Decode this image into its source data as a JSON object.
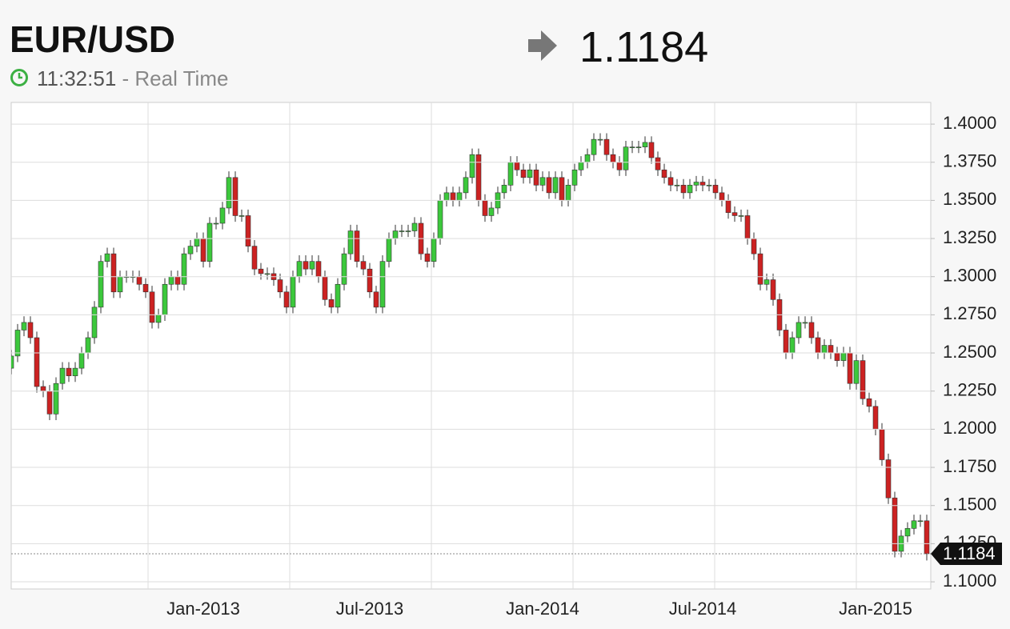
{
  "header": {
    "title": "EUR/USD",
    "time": "11:32:51",
    "status": "- Real Time",
    "price": 1.1184
  },
  "chart_data": {
    "type": "candlestick",
    "up_color": "#3cc83c",
    "down_color": "#cc2222",
    "grid": true,
    "ylim": [
      1.0953,
      1.4142
    ],
    "yticks": [
      {
        "value": 1.1,
        "label": "1.1000"
      },
      {
        "value": 1.125,
        "label": "1.1250"
      },
      {
        "value": 1.15,
        "label": "1.1500"
      },
      {
        "value": 1.175,
        "label": "1.1750"
      },
      {
        "value": 1.2,
        "label": "1.2000"
      },
      {
        "value": 1.225,
        "label": "1.2250"
      },
      {
        "value": 1.25,
        "label": "1.2500"
      },
      {
        "value": 1.275,
        "label": "1.2750"
      },
      {
        "value": 1.3,
        "label": "1.3000"
      },
      {
        "value": 1.325,
        "label": "1.3250"
      },
      {
        "value": 1.35,
        "label": "1.3500"
      },
      {
        "value": 1.375,
        "label": "1.3750"
      },
      {
        "value": 1.4,
        "label": "1.4000"
      }
    ],
    "categories": [
      null,
      null,
      null,
      null,
      null,
      null,
      null,
      null,
      null,
      null,
      null,
      null,
      null,
      null,
      null,
      null,
      null,
      null,
      null,
      null,
      null,
      null,
      null,
      null,
      null,
      null,
      null,
      null,
      null,
      null,
      "Jan-2013",
      null,
      null,
      null,
      null,
      null,
      null,
      null,
      null,
      null,
      null,
      null,
      null,
      null,
      null,
      null,
      null,
      null,
      null,
      null,
      null,
      null,
      null,
      null,
      null,
      null,
      "Jul-2013",
      null,
      null,
      null,
      null,
      null,
      null,
      null,
      null,
      null,
      null,
      null,
      null,
      null,
      null,
      null,
      null,
      null,
      null,
      null,
      null,
      null,
      null,
      null,
      null,
      null,
      null,
      "Jan-2014",
      null,
      null,
      null,
      null,
      null,
      null,
      null,
      null,
      null,
      null,
      null,
      null,
      null,
      null,
      null,
      null,
      null,
      null,
      null,
      null,
      null,
      null,
      null,
      null,
      "Jul-2014",
      null,
      null,
      null,
      null,
      null,
      null,
      null,
      null,
      null,
      null,
      null,
      null,
      null,
      null,
      null,
      null,
      null,
      null,
      null,
      null,
      null,
      null,
      null,
      null,
      null,
      null,
      "Jan-2015",
      null,
      null,
      null,
      null,
      null,
      null,
      null,
      null
    ],
    "open": [
      1.24,
      1.248,
      1.265,
      1.27,
      1.26,
      1.228,
      1.225,
      1.21,
      1.23,
      1.24,
      1.235,
      1.24,
      1.25,
      1.26,
      1.28,
      1.31,
      1.315,
      1.29,
      1.3,
      1.3,
      1.3,
      1.295,
      1.29,
      1.27,
      1.275,
      1.295,
      1.3,
      1.295,
      1.315,
      1.32,
      1.325,
      1.31,
      1.335,
      1.335,
      1.345,
      1.365,
      1.34,
      1.34,
      1.32,
      1.305,
      1.302,
      1.302,
      1.298,
      1.29,
      1.28,
      1.3,
      1.31,
      1.305,
      1.31,
      1.3,
      1.285,
      1.28,
      1.295,
      1.315,
      1.33,
      1.31,
      1.305,
      1.29,
      1.28,
      1.31,
      1.325,
      1.33,
      1.33,
      1.33,
      1.335,
      1.315,
      1.31,
      1.325,
      1.35,
      1.355,
      1.35,
      1.355,
      1.365,
      1.38,
      1.35,
      1.34,
      1.345,
      1.355,
      1.36,
      1.375,
      1.37,
      1.365,
      1.37,
      1.36,
      1.365,
      1.355,
      1.365,
      1.35,
      1.36,
      1.37,
      1.375,
      1.38,
      1.39,
      1.39,
      1.38,
      1.375,
      1.37,
      1.385,
      1.385,
      1.385,
      1.388,
      1.378,
      1.37,
      1.365,
      1.36,
      1.36,
      1.355,
      1.36,
      1.362,
      1.36,
      1.36,
      1.355,
      1.35,
      1.342,
      1.34,
      1.34,
      1.325,
      1.315,
      1.295,
      1.298,
      1.285,
      1.265,
      1.25,
      1.26,
      1.27,
      1.27,
      1.26,
      1.25,
      1.255,
      1.25,
      1.245,
      1.25,
      1.23,
      1.245,
      1.22,
      1.215,
      1.2,
      1.18,
      1.155,
      1.12,
      1.13,
      1.135,
      1.14,
      1.14
    ],
    "high": [
      1.252,
      1.269,
      1.274,
      1.274,
      1.264,
      1.232,
      1.229,
      1.234,
      1.244,
      1.244,
      1.244,
      1.254,
      1.264,
      1.284,
      1.314,
      1.319,
      1.319,
      1.304,
      1.304,
      1.304,
      1.304,
      1.299,
      1.294,
      1.279,
      1.299,
      1.304,
      1.304,
      1.319,
      1.324,
      1.329,
      1.329,
      1.339,
      1.339,
      1.349,
      1.369,
      1.369,
      1.344,
      1.344,
      1.324,
      1.309,
      1.306,
      1.306,
      1.302,
      1.294,
      1.304,
      1.314,
      1.314,
      1.314,
      1.314,
      1.304,
      1.289,
      1.299,
      1.319,
      1.334,
      1.334,
      1.314,
      1.309,
      1.294,
      1.314,
      1.329,
      1.334,
      1.334,
      1.334,
      1.339,
      1.339,
      1.319,
      1.329,
      1.354,
      1.359,
      1.359,
      1.359,
      1.369,
      1.384,
      1.384,
      1.354,
      1.349,
      1.359,
      1.364,
      1.379,
      1.379,
      1.374,
      1.374,
      1.374,
      1.369,
      1.369,
      1.369,
      1.369,
      1.364,
      1.374,
      1.379,
      1.384,
      1.394,
      1.394,
      1.394,
      1.384,
      1.379,
      1.389,
      1.389,
      1.389,
      1.392,
      1.392,
      1.382,
      1.374,
      1.369,
      1.364,
      1.364,
      1.364,
      1.366,
      1.366,
      1.364,
      1.364,
      1.359,
      1.354,
      1.346,
      1.344,
      1.344,
      1.329,
      1.319,
      1.302,
      1.302,
      1.289,
      1.269,
      1.264,
      1.274,
      1.274,
      1.274,
      1.264,
      1.259,
      1.259,
      1.254,
      1.254,
      1.254,
      1.249,
      1.249,
      1.224,
      1.219,
      1.204,
      1.184,
      1.159,
      1.134,
      1.139,
      1.144,
      1.144,
      1.144
    ],
    "low": [
      1.236,
      1.244,
      1.261,
      1.256,
      1.224,
      1.221,
      1.206,
      1.206,
      1.226,
      1.231,
      1.231,
      1.236,
      1.246,
      1.256,
      1.276,
      1.306,
      1.286,
      1.286,
      1.296,
      1.296,
      1.291,
      1.286,
      1.266,
      1.266,
      1.271,
      1.291,
      1.291,
      1.291,
      1.311,
      1.316,
      1.306,
      1.306,
      1.331,
      1.331,
      1.341,
      1.336,
      1.336,
      1.316,
      1.301,
      1.298,
      1.298,
      1.294,
      1.286,
      1.276,
      1.276,
      1.296,
      1.301,
      1.301,
      1.296,
      1.281,
      1.276,
      1.276,
      1.291,
      1.311,
      1.306,
      1.301,
      1.286,
      1.276,
      1.276,
      1.306,
      1.321,
      1.326,
      1.326,
      1.326,
      1.311,
      1.306,
      1.306,
      1.321,
      1.346,
      1.346,
      1.346,
      1.351,
      1.361,
      1.346,
      1.336,
      1.336,
      1.341,
      1.351,
      1.356,
      1.366,
      1.361,
      1.361,
      1.356,
      1.356,
      1.351,
      1.351,
      1.346,
      1.346,
      1.356,
      1.366,
      1.371,
      1.376,
      1.386,
      1.376,
      1.371,
      1.366,
      1.366,
      1.381,
      1.381,
      1.381,
      1.374,
      1.366,
      1.361,
      1.356,
      1.356,
      1.351,
      1.351,
      1.356,
      1.356,
      1.356,
      1.351,
      1.346,
      1.338,
      1.336,
      1.336,
      1.321,
      1.311,
      1.291,
      1.291,
      1.281,
      1.261,
      1.246,
      1.246,
      1.256,
      1.266,
      1.256,
      1.246,
      1.246,
      1.246,
      1.241,
      1.241,
      1.226,
      1.226,
      1.216,
      1.211,
      1.196,
      1.176,
      1.151,
      1.116,
      1.116,
      1.126,
      1.131,
      1.136,
      1.114
    ],
    "close": [
      1.248,
      1.265,
      1.27,
      1.26,
      1.228,
      1.225,
      1.21,
      1.23,
      1.24,
      1.235,
      1.24,
      1.25,
      1.26,
      1.28,
      1.31,
      1.315,
      1.29,
      1.3,
      1.3,
      1.3,
      1.295,
      1.29,
      1.27,
      1.275,
      1.295,
      1.3,
      1.295,
      1.315,
      1.32,
      1.325,
      1.31,
      1.335,
      1.335,
      1.345,
      1.365,
      1.34,
      1.34,
      1.32,
      1.305,
      1.302,
      1.302,
      1.298,
      1.29,
      1.28,
      1.3,
      1.31,
      1.305,
      1.31,
      1.3,
      1.285,
      1.28,
      1.295,
      1.315,
      1.33,
      1.31,
      1.305,
      1.29,
      1.28,
      1.31,
      1.325,
      1.33,
      1.33,
      1.33,
      1.335,
      1.315,
      1.31,
      1.325,
      1.35,
      1.355,
      1.35,
      1.355,
      1.365,
      1.38,
      1.35,
      1.34,
      1.345,
      1.355,
      1.36,
      1.375,
      1.37,
      1.365,
      1.37,
      1.36,
      1.365,
      1.355,
      1.365,
      1.35,
      1.36,
      1.37,
      1.375,
      1.38,
      1.39,
      1.39,
      1.38,
      1.375,
      1.37,
      1.385,
      1.385,
      1.385,
      1.388,
      1.378,
      1.37,
      1.365,
      1.36,
      1.36,
      1.355,
      1.36,
      1.362,
      1.36,
      1.36,
      1.355,
      1.35,
      1.342,
      1.34,
      1.34,
      1.325,
      1.315,
      1.295,
      1.298,
      1.285,
      1.265,
      1.25,
      1.26,
      1.27,
      1.27,
      1.26,
      1.25,
      1.255,
      1.25,
      1.245,
      1.25,
      1.23,
      1.245,
      1.22,
      1.215,
      1.2,
      1.18,
      1.155,
      1.12,
      1.13,
      1.135,
      1.14,
      1.14,
      1.1184
    ]
  }
}
